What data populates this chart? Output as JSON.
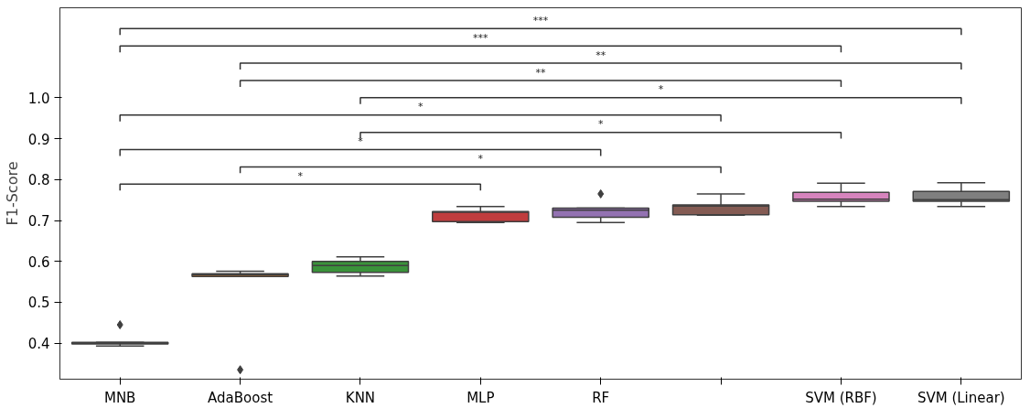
{
  "chart_data": {
    "type": "box",
    "ylabel": "F1-Score",
    "categories": [
      "MNB",
      "AdaBoost",
      "KNN",
      "MLP",
      "RF",
      null,
      "SVM (RBF)",
      "SVM (Linear)"
    ],
    "colors": [
      "#3274a1",
      "#e1812c",
      "#3a923a",
      "#c03d3e",
      "#9372b2",
      "#845b53",
      "#d684bd",
      "#7f7f7f"
    ],
    "boxes": [
      {
        "low": 0.393,
        "q1": 0.398,
        "median": 0.4,
        "q3": 0.402,
        "high": 0.402,
        "outliers": [
          0.445
        ]
      },
      {
        "low": 0.563,
        "q1": 0.563,
        "median": 0.567,
        "q3": 0.57,
        "high": 0.576,
        "outliers": [
          0.335
        ]
      },
      {
        "low": 0.564,
        "q1": 0.573,
        "median": 0.59,
        "q3": 0.6,
        "high": 0.611
      },
      {
        "low": 0.695,
        "q1": 0.697,
        "median": 0.72,
        "q3": 0.722,
        "high": 0.734
      },
      {
        "low": 0.695,
        "q1": 0.708,
        "median": 0.725,
        "q3": 0.73,
        "high": 0.73,
        "outliers": [
          0.765
        ]
      },
      {
        "low": 0.713,
        "q1": 0.714,
        "median": 0.735,
        "q3": 0.738,
        "high": 0.765
      },
      {
        "low": 0.734,
        "q1": 0.747,
        "median": 0.752,
        "q3": 0.769,
        "high": 0.791
      },
      {
        "low": 0.734,
        "q1": 0.747,
        "median": 0.751,
        "q3": 0.771,
        "high": 0.792
      }
    ],
    "marker": "diamond",
    "ylim": [
      0.312,
      1.22
    ],
    "yticks": [
      0.4,
      0.5,
      0.6,
      0.7,
      0.8,
      0.9,
      {
        "value": 1.0,
        "label": "1.0"
      }
    ],
    "grid": false,
    "annotations": [
      "*",
      "*",
      "*",
      "*",
      "*",
      "*",
      "**",
      "**",
      "***",
      "***"
    ]
  }
}
